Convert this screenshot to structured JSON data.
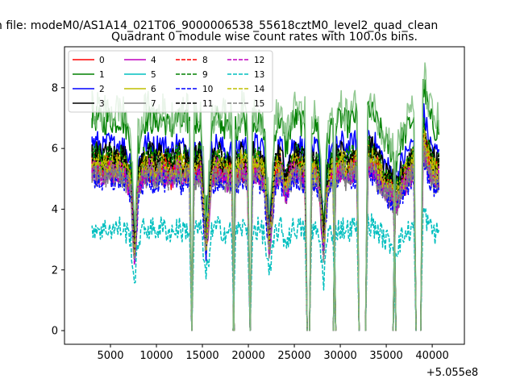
{
  "figure": {
    "suptitle": "n file: modeM0/AS1A14_021T06_9000006538_55618cztM0_level2_quad_clean",
    "offset_label": "+5.055e8"
  },
  "chart_data": {
    "type": "line",
    "title": "Quadrant 0 module wise count rates with 100.0s bins.",
    "xlabel": "",
    "ylabel": "",
    "x_offset": 505500000,
    "xlim": [
      0,
      43500
    ],
    "ylim": [
      -0.45,
      9.35
    ],
    "xticks": [
      5000,
      10000,
      15000,
      20000,
      25000,
      30000,
      35000,
      40000
    ],
    "xtick_labels": [
      "5000",
      "10000",
      "15000",
      "20000",
      "25000",
      "30000",
      "35000",
      "40000"
    ],
    "yticks": [
      0,
      2,
      4,
      6,
      8
    ],
    "ytick_labels": [
      "0",
      "2",
      "4",
      "6",
      "8"
    ],
    "grid": false,
    "legend_placement": "top-left",
    "legend_columns": 4,
    "segments": [
      [
        3000,
        13600
      ],
      [
        14100,
        18200
      ],
      [
        18600,
        19950
      ],
      [
        20450,
        26150
      ],
      [
        26900,
        29250
      ],
      [
        29500,
        31800
      ],
      [
        33000,
        35800
      ],
      [
        36000,
        38000
      ],
      [
        39000,
        40700
      ]
    ],
    "anchor_x": [
      3000,
      3600,
      4200,
      4800,
      5400,
      6000,
      6600,
      7200,
      7600,
      7800,
      8000,
      8600,
      9200,
      9800,
      10400,
      11000,
      11600,
      12200,
      12800,
      13300,
      14200,
      14800,
      15400,
      16000,
      16600,
      17200,
      17800,
      18700,
      19300,
      19900,
      20500,
      21100,
      21700,
      22300,
      22900,
      23500,
      24100,
      24700,
      25300,
      25900,
      27000,
      27600,
      28200,
      28600,
      29100,
      29600,
      30200,
      30800,
      31400,
      33100,
      33700,
      34300,
      34900,
      35500,
      36100,
      36700,
      37300,
      37900,
      39100,
      39700,
      40300
    ],
    "anchor_scale": [
      1.0,
      1.0,
      0.97,
      1.0,
      0.98,
      1.0,
      0.97,
      0.9,
      0.45,
      0.6,
      0.88,
      0.98,
      1.0,
      0.97,
      1.0,
      0.98,
      0.95,
      1.0,
      0.97,
      0.98,
      0.97,
      1.0,
      0.5,
      0.95,
      1.0,
      0.97,
      0.95,
      0.95,
      1.0,
      0.97,
      1.0,
      0.98,
      0.95,
      0.5,
      0.95,
      1.0,
      0.85,
      0.98,
      1.0,
      0.97,
      0.97,
      0.95,
      0.5,
      0.9,
      0.97,
      0.98,
      1.0,
      0.97,
      1.0,
      1.05,
      1.0,
      0.95,
      0.88,
      0.85,
      0.8,
      0.9,
      0.95,
      1.0,
      1.15,
      1.0,
      0.95
    ],
    "series": [
      {
        "name": "0",
        "color": "#ff0000",
        "dash": "solid",
        "level": 5.3
      },
      {
        "name": "1",
        "color": "#008000",
        "dash": "solid",
        "level": 7.0
      },
      {
        "name": "2",
        "color": "#0000ff",
        "dash": "solid",
        "level": 6.2
      },
      {
        "name": "3",
        "color": "#000000",
        "dash": "solid",
        "level": 5.9
      },
      {
        "name": "4",
        "color": "#bf00bf",
        "dash": "solid",
        "level": 5.2
      },
      {
        "name": "5",
        "color": "#00bfbf",
        "dash": "solid",
        "level": 5.4
      },
      {
        "name": "6",
        "color": "#bfbf00",
        "dash": "solid",
        "level": 5.6
      },
      {
        "name": "7",
        "color": "#808080",
        "dash": "solid",
        "level": 5.1
      },
      {
        "name": "8",
        "color": "#ff0000",
        "dash": "dashed",
        "level": 5.5
      },
      {
        "name": "9",
        "color": "#008000",
        "dash": "dashed",
        "level": 5.8
      },
      {
        "name": "10",
        "color": "#0000ff",
        "dash": "dashed",
        "level": 5.0
      },
      {
        "name": "11",
        "color": "#000000",
        "dash": "dashed",
        "level": 5.7
      },
      {
        "name": "12",
        "color": "#bf00bf",
        "dash": "dashed",
        "level": 5.3
      },
      {
        "name": "13",
        "color": "#00bfbf",
        "dash": "dashed",
        "level": 3.4
      },
      {
        "name": "14",
        "color": "#bfbf00",
        "dash": "dashed",
        "level": 5.5
      },
      {
        "name": "15",
        "color": "#808080",
        "dash": "dashed",
        "level": 5.2
      }
    ],
    "overlay": {
      "color": "#7fbf7f",
      "level": 7.3
    }
  }
}
